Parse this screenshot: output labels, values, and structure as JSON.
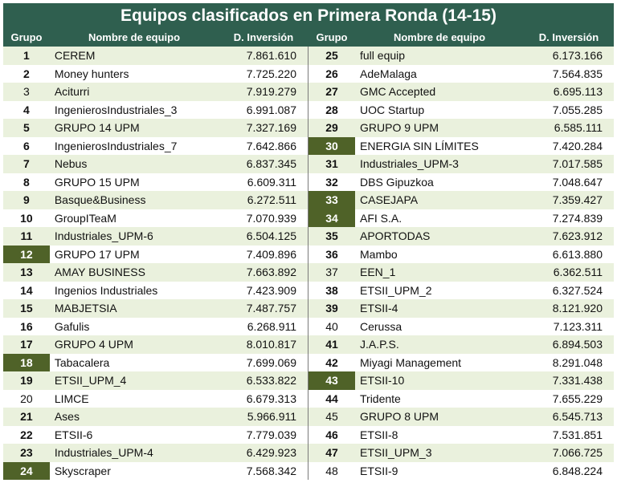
{
  "title": "Equipos clasificados en Primera Ronda (14-15)",
  "headers": {
    "grupo": "Grupo",
    "nombre": "Nombre de equipo",
    "inversion": "D. Inversión"
  },
  "colors": {
    "header_bg": "#2f5f4f",
    "highlight_bg": "#4f6228",
    "stripe": "#eaf1dd"
  },
  "left_rows": [
    {
      "g": "1",
      "name": "CEREM",
      "value": "7.861.610",
      "bold": true,
      "dark": false
    },
    {
      "g": "2",
      "name": "Money hunters",
      "value": "7.725.220",
      "bold": true,
      "dark": false
    },
    {
      "g": "3",
      "name": "Aciturri",
      "value": "7.919.279",
      "bold": false,
      "dark": false
    },
    {
      "g": "4",
      "name": "IngenierosIndustriales_3",
      "value": "6.991.087",
      "bold": true,
      "dark": false
    },
    {
      "g": "5",
      "name": "GRUPO 14 UPM",
      "value": "7.327.169",
      "bold": true,
      "dark": false
    },
    {
      "g": "6",
      "name": "IngenierosIndustriales_7",
      "value": "7.642.866",
      "bold": true,
      "dark": false
    },
    {
      "g": "7",
      "name": "Nebus",
      "value": "6.837.345",
      "bold": true,
      "dark": false
    },
    {
      "g": "8",
      "name": "GRUPO 15 UPM",
      "value": "6.609.311",
      "bold": true,
      "dark": false
    },
    {
      "g": "9",
      "name": "Basque&Business",
      "value": "6.272.511",
      "bold": true,
      "dark": false
    },
    {
      "g": "10",
      "name": "GroupITeaM",
      "value": "7.070.939",
      "bold": true,
      "dark": false
    },
    {
      "g": "11",
      "name": "Industriales_UPM-6",
      "value": "6.504.125",
      "bold": true,
      "dark": false
    },
    {
      "g": "12",
      "name": "GRUPO 17 UPM",
      "value": "7.409.896",
      "bold": true,
      "dark": true
    },
    {
      "g": "13",
      "name": "AMAY BUSINESS",
      "value": "7.663.892",
      "bold": true,
      "dark": false
    },
    {
      "g": "14",
      "name": "Ingenios Industriales",
      "value": "7.423.909",
      "bold": true,
      "dark": false
    },
    {
      "g": "15",
      "name": "MABJETSIA",
      "value": "7.487.757",
      "bold": true,
      "dark": false
    },
    {
      "g": "16",
      "name": "Gafulis",
      "value": "6.268.911",
      "bold": true,
      "dark": false
    },
    {
      "g": "17",
      "name": "GRUPO 4 UPM",
      "value": "8.010.817",
      "bold": true,
      "dark": false
    },
    {
      "g": "18",
      "name": "Tabacalera",
      "value": "7.699.069",
      "bold": true,
      "dark": true
    },
    {
      "g": "19",
      "name": "ETSII_UPM_4",
      "value": "6.533.822",
      "bold": true,
      "dark": false
    },
    {
      "g": "20",
      "name": "LIMCE",
      "value": "6.679.313",
      "bold": false,
      "dark": false
    },
    {
      "g": "21",
      "name": "Ases",
      "value": "5.966.911",
      "bold": true,
      "dark": false
    },
    {
      "g": "22",
      "name": "ETSII-6",
      "value": "7.779.039",
      "bold": true,
      "dark": false
    },
    {
      "g": "23",
      "name": "Industriales_UPM-4",
      "value": "6.429.923",
      "bold": true,
      "dark": false
    },
    {
      "g": "24",
      "name": "Skyscraper",
      "value": "7.568.342",
      "bold": true,
      "dark": true
    }
  ],
  "right_rows": [
    {
      "g": "25",
      "name": "full equip",
      "value": "6.173.166",
      "bold": true,
      "dark": false
    },
    {
      "g": "26",
      "name": "AdeMalaga",
      "value": "7.564.835",
      "bold": true,
      "dark": false
    },
    {
      "g": "27",
      "name": "GMC Accepted",
      "value": "6.695.113",
      "bold": true,
      "dark": false
    },
    {
      "g": "28",
      "name": "UOC Startup",
      "value": "7.055.285",
      "bold": true,
      "dark": false
    },
    {
      "g": "29",
      "name": "GRUPO 9 UPM",
      "value": "6.585.111",
      "bold": true,
      "dark": false
    },
    {
      "g": "30",
      "name": "ENERGIA SIN LÍMITES",
      "value": "7.420.284",
      "bold": true,
      "dark": true
    },
    {
      "g": "31",
      "name": "Industriales_UPM-3",
      "value": "7.017.585",
      "bold": true,
      "dark": false
    },
    {
      "g": "32",
      "name": "DBS Gipuzkoa",
      "value": "7.048.647",
      "bold": true,
      "dark": false
    },
    {
      "g": "33",
      "name": "CASEJAPA",
      "value": "7.359.427",
      "bold": true,
      "dark": true
    },
    {
      "g": "34",
      "name": "AFI S.A.",
      "value": "7.274.839",
      "bold": true,
      "dark": true
    },
    {
      "g": "35",
      "name": "APORTODAS",
      "value": "7.623.912",
      "bold": true,
      "dark": false
    },
    {
      "g": "36",
      "name": "Mambo",
      "value": "6.613.880",
      "bold": true,
      "dark": false
    },
    {
      "g": "37",
      "name": "EEN_1",
      "value": "6.362.511",
      "bold": false,
      "dark": false
    },
    {
      "g": "38",
      "name": "ETSII_UPM_2",
      "value": "6.327.524",
      "bold": true,
      "dark": false
    },
    {
      "g": "39",
      "name": "ETSII-4",
      "value": "8.121.920",
      "bold": true,
      "dark": false
    },
    {
      "g": "40",
      "name": "Cerussa",
      "value": "7.123.311",
      "bold": false,
      "dark": false
    },
    {
      "g": "41",
      "name": "J.A.P.S.",
      "value": "6.894.503",
      "bold": true,
      "dark": false
    },
    {
      "g": "42",
      "name": "Miyagi Management",
      "value": "8.291.048",
      "bold": true,
      "dark": false
    },
    {
      "g": "43",
      "name": "ETSII-10",
      "value": "7.331.438",
      "bold": true,
      "dark": true
    },
    {
      "g": "44",
      "name": "Tridente",
      "value": "7.655.229",
      "bold": true,
      "dark": false
    },
    {
      "g": "45",
      "name": "GRUPO 8 UPM",
      "value": "6.545.713",
      "bold": false,
      "dark": false
    },
    {
      "g": "46",
      "name": "ETSII-8",
      "value": "7.531.851",
      "bold": true,
      "dark": false
    },
    {
      "g": "47",
      "name": "ETSII_UPM_3",
      "value": "7.066.725",
      "bold": true,
      "dark": false
    },
    {
      "g": "48",
      "name": "ETSII-9",
      "value": "6.848.224",
      "bold": false,
      "dark": false
    }
  ]
}
